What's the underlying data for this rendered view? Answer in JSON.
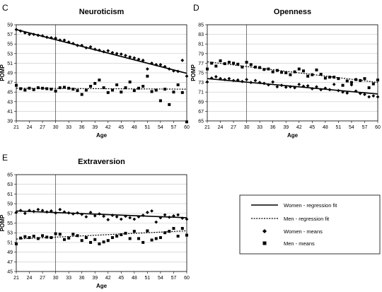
{
  "chart_data": [
    {
      "type": "scatter",
      "panel_letter": "C",
      "title": "Neuroticism",
      "xlabel": "Age",
      "ylabel": "POMP",
      "xlim": [
        21,
        60
      ],
      "ylim": [
        39,
        59
      ],
      "x_ticks": [
        21,
        24,
        27,
        30,
        33,
        36,
        39,
        42,
        45,
        48,
        51,
        54,
        57,
        60
      ],
      "y_ticks": [
        39,
        41,
        43,
        45,
        47,
        49,
        51,
        53,
        55,
        57,
        59
      ],
      "reference_line_x": 30,
      "x": [
        21,
        22,
        23,
        24,
        25,
        26,
        27,
        28,
        29,
        30,
        31,
        32,
        33,
        34,
        35,
        36,
        37,
        38,
        39,
        40,
        41,
        42,
        43,
        44,
        45,
        46,
        47,
        48,
        49,
        50,
        51,
        52,
        53,
        54,
        55,
        56,
        57,
        58,
        59,
        60
      ],
      "series": [
        {
          "name": "Women - means",
          "marker": "diamond",
          "values": [
            58.0,
            57.7,
            57.3,
            57.0,
            57.0,
            56.8,
            56.7,
            56.4,
            56.3,
            56.2,
            55.8,
            55.8,
            55.4,
            55.1,
            54.7,
            54.7,
            54.2,
            54.4,
            53.9,
            53.7,
            53.4,
            53.6,
            53.2,
            53.0,
            52.9,
            52.6,
            52.3,
            52.1,
            51.8,
            51.6,
            49.8,
            51.0,
            50.7,
            50.7,
            50.3,
            49.8,
            49.4,
            49.3,
            51.6,
            48.3
          ]
        },
        {
          "name": "Men - means",
          "marker": "square",
          "values": [
            46.4,
            45.7,
            45.4,
            45.8,
            45.5,
            45.9,
            45.8,
            45.7,
            45.6,
            45.2,
            45.9,
            46.0,
            45.8,
            45.6,
            45.3,
            44.5,
            45.4,
            46.2,
            46.8,
            47.5,
            45.9,
            44.9,
            45.4,
            46.5,
            45.0,
            45.9,
            47.1,
            45.3,
            45.8,
            46.2,
            48.3,
            45.1,
            45.4,
            43.2,
            45.6,
            42.4,
            45.0,
            46.5,
            44.9,
            38.8
          ]
        }
      ],
      "fits": [
        {
          "name": "Women - regression fit",
          "style": "solid",
          "x": [
            21,
            60
          ],
          "y": [
            58.0,
            48.9
          ]
        },
        {
          "name": "Men - regression fit",
          "style": "dotted",
          "x": [
            21,
            60
          ],
          "y": [
            45.8,
            45.6
          ]
        }
      ]
    },
    {
      "type": "scatter",
      "panel_letter": "D",
      "title": "Openness",
      "xlabel": "Age",
      "ylabel": "POMP",
      "xlim": [
        21,
        60
      ],
      "ylim": [
        65,
        85
      ],
      "x_ticks": [
        21,
        24,
        27,
        30,
        33,
        36,
        39,
        42,
        45,
        48,
        51,
        54,
        57,
        60
      ],
      "y_ticks": [
        65,
        67,
        69,
        71,
        73,
        75,
        77,
        79,
        81,
        83,
        85
      ],
      "reference_line_x": 30,
      "x": [
        21,
        22,
        23,
        24,
        25,
        26,
        27,
        28,
        29,
        30,
        31,
        32,
        33,
        34,
        35,
        36,
        37,
        38,
        39,
        40,
        41,
        42,
        43,
        44,
        45,
        46,
        47,
        48,
        49,
        50,
        51,
        52,
        53,
        54,
        55,
        56,
        57,
        58,
        59,
        60
      ],
      "series": [
        {
          "name": "Women - means",
          "marker": "diamond",
          "values": [
            73.1,
            73.9,
            74.2,
            73.8,
            73.6,
            73.8,
            73.4,
            73.5,
            73.2,
            73.6,
            73.0,
            73.4,
            73.0,
            72.8,
            72.5,
            73.1,
            72.1,
            72.4,
            72.0,
            72.1,
            71.9,
            72.6,
            72.2,
            72.3,
            71.7,
            72.1,
            71.5,
            71.8,
            71.5,
            72.6,
            71.3,
            71.0,
            70.8,
            72.5,
            71.2,
            70.7,
            70.5,
            70.0,
            70.2,
            70.0
          ]
        },
        {
          "name": "Men - means",
          "marker": "square",
          "values": [
            75.8,
            77.0,
            76.4,
            77.5,
            76.9,
            77.2,
            77.0,
            76.8,
            76.2,
            77.2,
            76.7,
            76.2,
            76.1,
            75.7,
            75.8,
            75.2,
            75.5,
            75.1,
            75.0,
            74.6,
            75.2,
            75.8,
            75.4,
            74.3,
            74.6,
            75.6,
            74.7,
            73.9,
            74.1,
            74.1,
            73.8,
            72.4,
            73.3,
            73.0,
            73.6,
            73.4,
            73.8,
            71.9,
            72.7,
            73.5
          ]
        }
      ],
      "fits": [
        {
          "name": "Women - regression fit",
          "style": "solid",
          "x": [
            21,
            60
          ],
          "y": [
            73.8,
            70.6
          ]
        },
        {
          "name": "Men - regression fit",
          "style": "dotted",
          "x": [
            21,
            60
          ],
          "y": [
            77.3,
            73.0
          ]
        }
      ]
    },
    {
      "type": "scatter",
      "panel_letter": "E",
      "title": "Extraversion",
      "xlabel": "Age",
      "ylabel": "POMP",
      "xlim": [
        21,
        60
      ],
      "ylim": [
        45,
        65
      ],
      "x_ticks": [
        21,
        24,
        27,
        30,
        33,
        36,
        39,
        42,
        45,
        48,
        51,
        54,
        57,
        60
      ],
      "y_ticks": [
        45,
        47,
        49,
        51,
        53,
        55,
        57,
        59,
        61,
        63,
        65
      ],
      "reference_line_x": 30,
      "x": [
        21,
        22,
        23,
        24,
        25,
        26,
        27,
        28,
        29,
        30,
        31,
        32,
        33,
        34,
        35,
        36,
        37,
        38,
        39,
        40,
        41,
        42,
        43,
        44,
        45,
        46,
        47,
        48,
        49,
        50,
        51,
        52,
        53,
        54,
        55,
        56,
        57,
        58,
        59,
        60
      ],
      "series": [
        {
          "name": "Women - means",
          "marker": "diamond",
          "values": [
            57.2,
            57.6,
            57.0,
            57.6,
            57.4,
            57.8,
            57.6,
            57.3,
            57.5,
            57.1,
            57.8,
            57.3,
            57.1,
            56.9,
            57.1,
            56.8,
            56.3,
            57.2,
            56.5,
            56.9,
            56.4,
            55.7,
            56.6,
            56.3,
            55.8,
            56.4,
            56.1,
            55.8,
            56.3,
            56.6,
            57.2,
            57.5,
            55.2,
            56.1,
            56.7,
            56.2,
            56.5,
            56.7,
            56.0,
            55.8
          ]
        },
        {
          "name": "Men - means",
          "marker": "square",
          "values": [
            50.7,
            51.9,
            52.2,
            52.0,
            52.3,
            51.8,
            52.4,
            52.1,
            52.0,
            52.8,
            52.7,
            51.6,
            51.9,
            52.7,
            52.4,
            51.4,
            52.0,
            51.0,
            51.6,
            50.7,
            51.1,
            51.4,
            52.0,
            52.3,
            52.6,
            52.9,
            51.8,
            53.3,
            51.8,
            51.0,
            53.4,
            51.5,
            51.8,
            52.0,
            53.0,
            53.3,
            53.9,
            52.3,
            53.9,
            52.5
          ]
        }
      ],
      "fits": [
        {
          "name": "Women - regression fit",
          "style": "solid",
          "x": [
            21,
            60
          ],
          "y": [
            57.5,
            56.1
          ]
        },
        {
          "name": "Men - regression fit",
          "style": "dotted",
          "x": [
            21,
            60
          ],
          "y": [
            51.7,
            53.4
          ]
        }
      ]
    }
  ],
  "legend": {
    "placement": "bottom-right",
    "items": [
      {
        "label": "Women - regression fit",
        "symbol": "solid-line"
      },
      {
        "label": "Men - regression fit",
        "symbol": "dotted-line"
      },
      {
        "label": "Women - means",
        "symbol": "diamond"
      },
      {
        "label": "Men - means",
        "symbol": "square"
      }
    ]
  }
}
